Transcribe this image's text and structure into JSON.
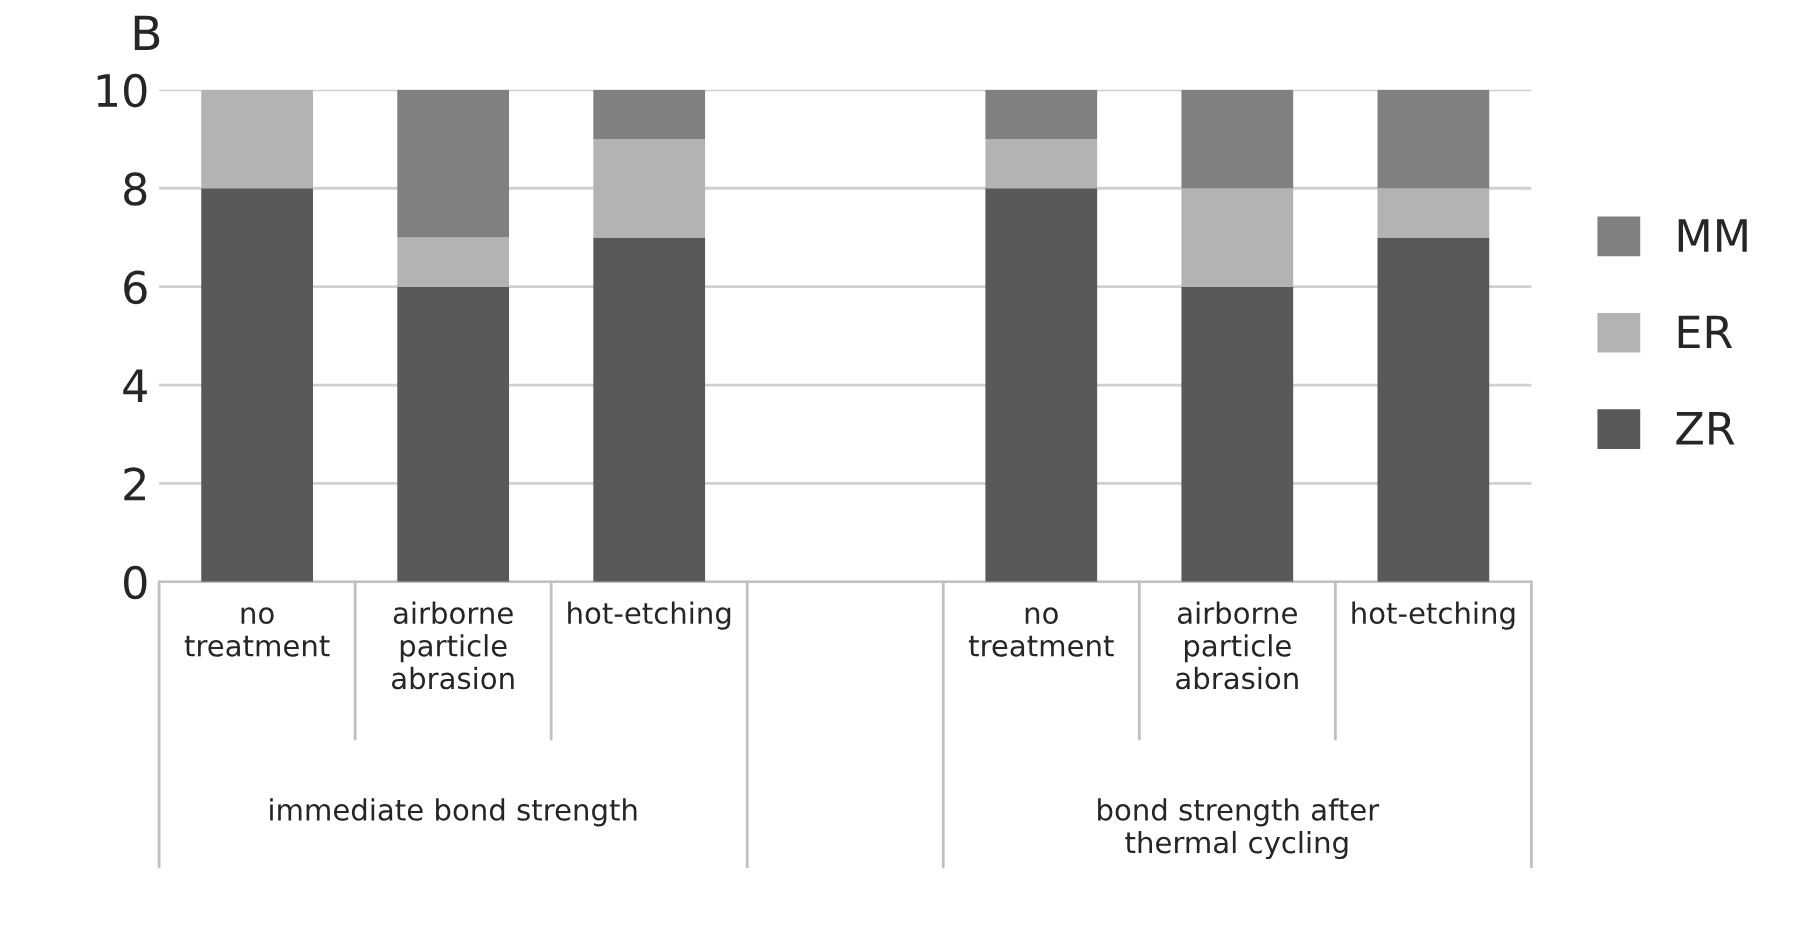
{
  "chart_data": {
    "type": "bar",
    "title": "B",
    "stacked": true,
    "categories": [
      "no\ntreatment",
      "airborne\nparticle\nabrasion",
      "hot-etching",
      null,
      "no\ntreatment",
      "airborne\nparticle\nabrasion",
      "hot-etching"
    ],
    "series": [
      {
        "name": "ZR",
        "color": "#595959",
        "values": [
          8,
          6,
          7,
          null,
          8,
          6,
          7
        ]
      },
      {
        "name": "ER",
        "color": "#b3b3b3",
        "values": [
          2,
          1,
          2,
          null,
          1,
          2,
          1
        ]
      },
      {
        "name": "MM",
        "color": "#808080",
        "values": [
          0,
          3,
          1,
          null,
          1,
          2,
          2
        ]
      }
    ],
    "annotations": [
      "immediate bond strength",
      "bond strength after\nthermal cycling"
    ],
    "ylim": [
      0,
      10
    ],
    "yticks": [
      0,
      2,
      4,
      6,
      8,
      10
    ],
    "grid": "y",
    "legend": "right"
  }
}
